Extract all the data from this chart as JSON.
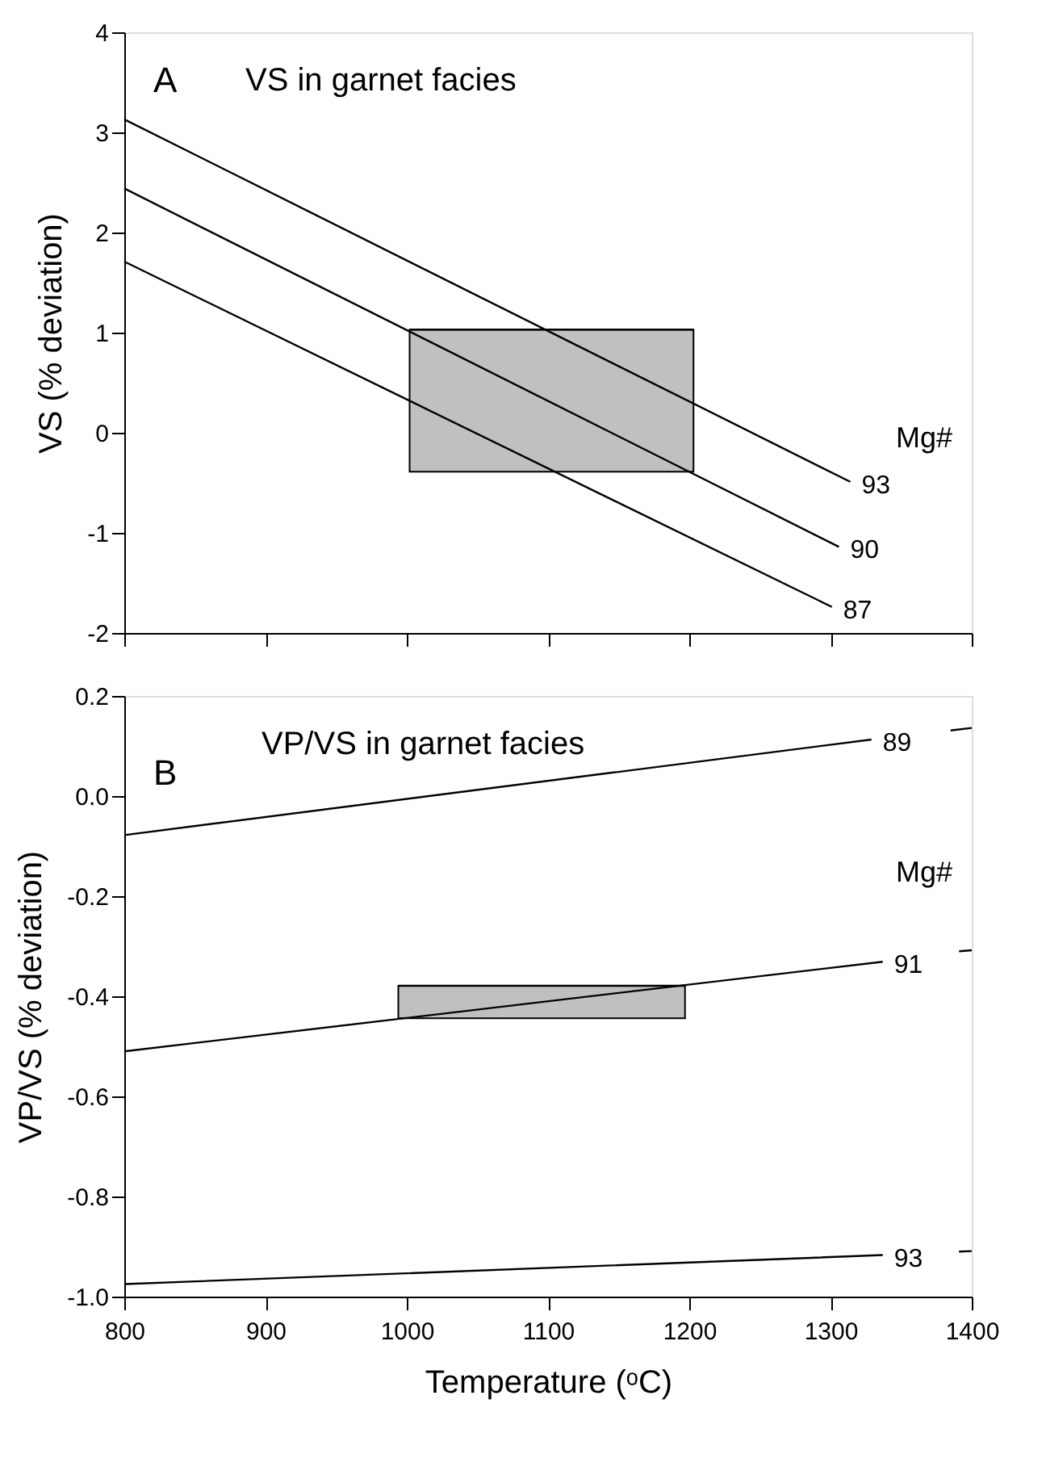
{
  "chart_data": [
    {
      "type": "line",
      "title": "VS in garnet facies",
      "ylabel": "VS  (% deviation)",
      "annotations": [
        "A",
        "Mg#"
      ],
      "xlim": [
        800,
        1400
      ],
      "xticks": [
        800,
        900,
        1000,
        1100,
        1200,
        1300,
        1400
      ],
      "ylim": [
        -2,
        4
      ],
      "yticks": [
        -2,
        -1,
        0,
        1,
        2,
        3,
        4
      ],
      "tick_labels": "y",
      "line_style": "solid",
      "series": [
        {
          "type": "line",
          "color": "#000000",
          "x": [
            1002,
            1203
          ],
          "values": [
            1.03,
            1.03
          ],
          "lower": [
            -0.39,
            -0.39
          ],
          "upper": [
            1.03,
            1.03
          ]
        },
        {
          "name": "93",
          "color": "#000000",
          "x": [
            800,
            1314
          ],
          "values": [
            3.13,
            -0.49
          ]
        },
        {
          "name": "90",
          "color": "#000000",
          "x": [
            800,
            1306
          ],
          "values": [
            2.44,
            -1.14
          ]
        },
        {
          "name": "87",
          "color": "#000000",
          "x": [
            800,
            1301
          ],
          "values": [
            1.71,
            -1.74
          ]
        }
      ]
    },
    {
      "type": "line",
      "title": "VP/VS in garnet facies",
      "xlabel": "Temperature (ᵒC)",
      "ylabel": "VP/VS  (% deviation)",
      "annotations": [
        "B",
        "Mg#"
      ],
      "xlim": [
        800,
        1400
      ],
      "xticks": [
        800,
        900,
        1000,
        1100,
        1200,
        1300,
        1400
      ],
      "ylim": [
        -1.0,
        0.2
      ],
      "yticks": [
        {
          "value": -1.0,
          "label": "-1.0"
        },
        -0.8,
        -0.6,
        -0.4,
        -0.2,
        {
          "value": 0.0,
          "label": "0.0"
        },
        0.2
      ],
      "line_style": "solid",
      "series": [
        {
          "type": "line",
          "color": "#000000",
          "x": [
            994,
            1197
          ],
          "values": [
            -0.379,
            -0.379
          ],
          "lower": [
            -0.444,
            -0.444
          ],
          "upper": [
            -0.379,
            -0.379
          ]
        },
        {
          "name": "89",
          "color": "#000000",
          "x": [
            800,
            1329,
            1360,
            1385,
            1400
          ],
          "values": [
            -0.078,
            0.113,
            null,
            0.131,
            0.136
          ]
        },
        {
          "name": "91",
          "color": "#000000",
          "x": [
            800,
            1337,
            1365,
            1391,
            1400
          ],
          "values": [
            -0.51,
            -0.331,
            null,
            -0.31,
            -0.308
          ]
        },
        {
          "name": "93",
          "color": "#000000",
          "x": [
            800,
            1337,
            1365,
            1391,
            1400
          ],
          "values": [
            -0.975,
            -0.917,
            null,
            -0.91,
            -0.909
          ]
        }
      ]
    }
  ]
}
